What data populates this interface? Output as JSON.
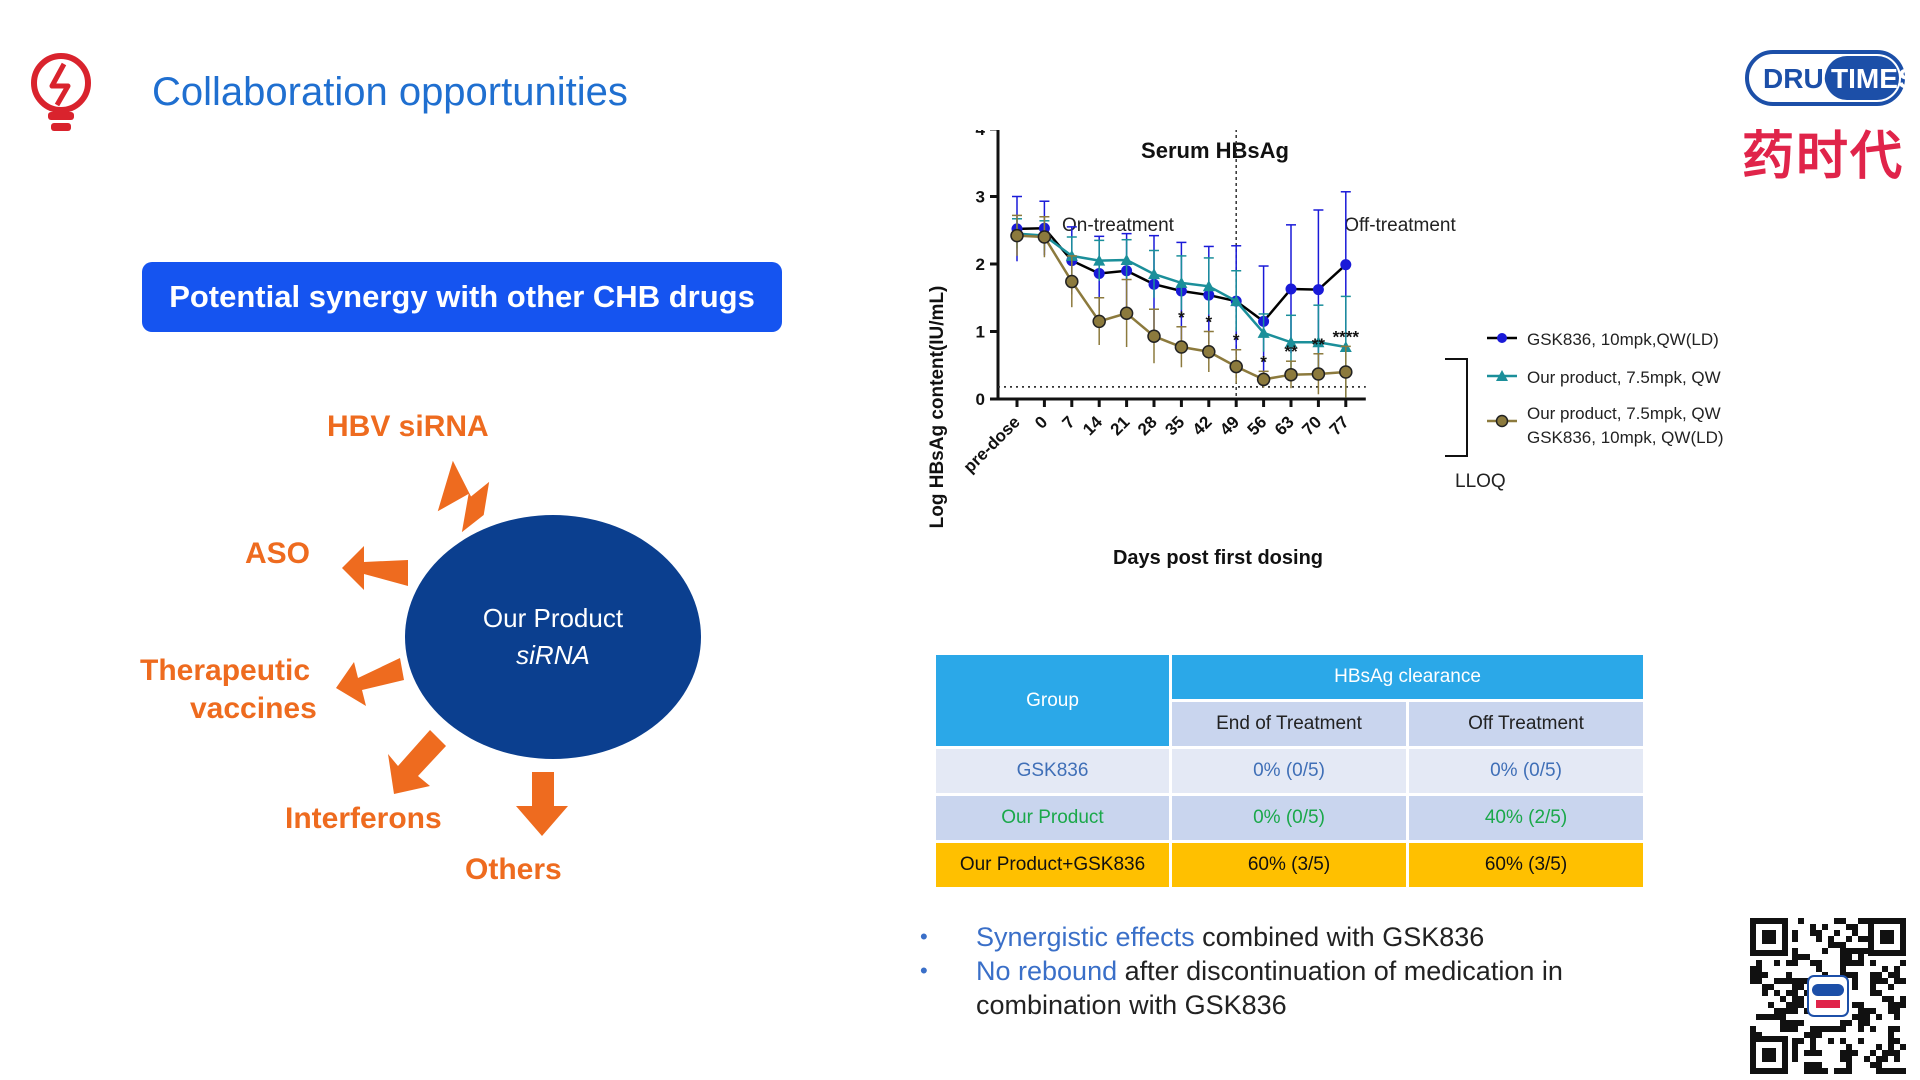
{
  "slide": {
    "title": "Collaboration opportunities",
    "logo_text": "DRUG TIMES",
    "logo_cn": "药时代"
  },
  "synergy": {
    "banner": "Potential synergy with other CHB drugs",
    "center_line1": "Our Product",
    "center_line2": "siRNA",
    "partners": [
      "HBV siRNA",
      "ASO",
      "Therapeutic",
      "vaccines",
      "Interferons",
      "Others"
    ]
  },
  "chart_data": {
    "type": "line",
    "title": "Serum HBsAg",
    "xlabel": "Days post first dosing",
    "ylabel": "Log HBsAg content(IU/mL)",
    "categories": [
      "pre-dose",
      "0",
      "7",
      "14",
      "21",
      "28",
      "35",
      "42",
      "49",
      "56",
      "63",
      "70",
      "77"
    ],
    "ylim": [
      0,
      4
    ],
    "yticks": [
      "0",
      "1",
      "2",
      "3",
      "4"
    ],
    "phase_labels": [
      "On-treatment",
      "Off-treatment"
    ],
    "phase_divider_after": "49",
    "lloq_label": "LLOQ",
    "lloq_value": 0.18,
    "legend_position": "right",
    "series": [
      {
        "name": "GSK836, 10mpk,QW(LD)",
        "color": "#1a1ad8",
        "line_color": "#000000",
        "marker": "circle",
        "values": [
          2.52,
          2.53,
          2.05,
          1.86,
          1.9,
          1.7,
          1.6,
          1.54,
          1.45,
          1.15,
          1.63,
          1.62,
          1.99
        ],
        "errors": [
          0.48,
          0.4,
          0.5,
          0.55,
          0.55,
          0.72,
          0.72,
          0.72,
          0.82,
          0.82,
          0.95,
          1.18,
          1.08
        ]
      },
      {
        "name": "Our product, 7.5mpk, QW",
        "color": "#1b8f9a",
        "line_color": "#1b8f9a",
        "marker": "triangle",
        "values": [
          2.45,
          2.42,
          2.12,
          2.05,
          2.06,
          1.85,
          1.72,
          1.67,
          1.45,
          0.98,
          0.84,
          0.84,
          0.77
        ],
        "errors": [
          0.22,
          0.22,
          0.28,
          0.3,
          0.3,
          0.35,
          0.4,
          0.42,
          0.45,
          0.28,
          0.4,
          0.55,
          0.75
        ]
      },
      {
        "name_line1": "Our product, 7.5mpk, QW",
        "name_line2": "GSK836, 10mpk, QW(LD)",
        "color": "#8c7a3d",
        "line_color": "#8c7a3d",
        "marker": "circle-outline",
        "values": [
          2.42,
          2.4,
          1.74,
          1.15,
          1.27,
          0.93,
          0.77,
          0.7,
          0.48,
          0.29,
          0.36,
          0.37,
          0.4
        ],
        "errors": [
          0.3,
          0.3,
          0.38,
          0.35,
          0.5,
          0.4,
          0.3,
          0.3,
          0.25,
          0.12,
          0.2,
          0.3,
          0.38
        ]
      }
    ],
    "significance": [
      {
        "x": "35",
        "label": "*"
      },
      {
        "x": "42",
        "label": "*"
      },
      {
        "x": "49",
        "label": "*"
      },
      {
        "x": "56",
        "label": "*"
      },
      {
        "x": "63",
        "label": "**"
      },
      {
        "x": "70",
        "label": "**"
      },
      {
        "x": "77",
        "label": "****"
      }
    ]
  },
  "table": {
    "group_header": "Group",
    "clearance_header": "HBsAg clearance",
    "col_end": "End of Treatment",
    "col_off": "Off Treatment",
    "rows": [
      {
        "group": "GSK836",
        "end": "0% (0/5)",
        "off": "0% (0/5)"
      },
      {
        "group": "Our Product",
        "end": "0% (0/5)",
        "off": "40% (2/5)"
      },
      {
        "group": "Our Product+GSK836",
        "end": "60% (3/5)",
        "off": "60% (3/5)"
      }
    ]
  },
  "bullets": [
    {
      "highlight": "Synergistic effects",
      "rest": " combined with GSK836"
    },
    {
      "highlight": "No rebound",
      "rest": " after discontinuation of medication in",
      "line2": "combination with GSK836"
    }
  ],
  "colors": {
    "title_blue": "#1f6fd0",
    "banner_blue": "#1554f0",
    "hub_navy": "#0b3f8f",
    "arrow_orange": "#ee6b1f",
    "brand_red": "#e0244a"
  }
}
